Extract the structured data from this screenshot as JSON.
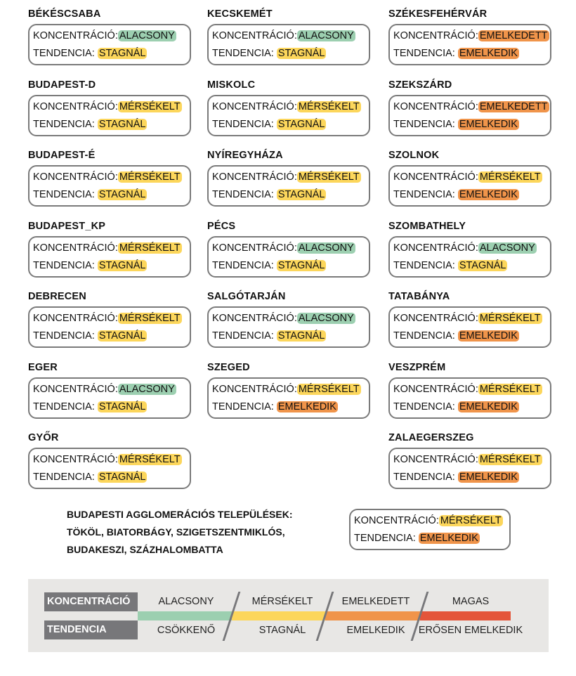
{
  "labels": {
    "concentration": "KONCENTRÁCIÓ:",
    "trend": "TENDENCIA:"
  },
  "colors": {
    "ALACSONY": "#9ccfb0",
    "MÉRSÉKELT": "#fcd65b",
    "EMELKEDETT": "#f0944a",
    "STAGNÁL": "#fcd65b",
    "EMELKEDIK": "#f0944a",
    "MAGAS": "#e4553a"
  },
  "columns": [
    [
      {
        "name": "BÉKÉSCSABA",
        "concentration": "ALACSONY",
        "trend": "STAGNÁL"
      },
      {
        "name": "BUDAPEST-D",
        "concentration": "MÉRSÉKELT",
        "trend": "STAGNÁL"
      },
      {
        "name": "BUDAPEST-É",
        "concentration": "MÉRSÉKELT",
        "trend": "STAGNÁL"
      },
      {
        "name": "BUDAPEST_KP",
        "concentration": "MÉRSÉKELT",
        "trend": "STAGNÁL"
      },
      {
        "name": "DEBRECEN",
        "concentration": "MÉRSÉKELT",
        "trend": "STAGNÁL"
      },
      {
        "name": "EGER",
        "concentration": "ALACSONY",
        "trend": "STAGNÁL"
      },
      {
        "name": "GYŐR",
        "concentration": "MÉRSÉKELT",
        "trend": "STAGNÁL"
      }
    ],
    [
      {
        "name": "KECSKEMÉT",
        "concentration": "ALACSONY",
        "trend": "STAGNÁL"
      },
      {
        "name": "MISKOLC",
        "concentration": "MÉRSÉKELT",
        "trend": "STAGNÁL"
      },
      {
        "name": "NYÍREGYHÁZA",
        "concentration": "MÉRSÉKELT",
        "trend": "STAGNÁL"
      },
      {
        "name": "PÉCS",
        "concentration": "ALACSONY",
        "trend": "STAGNÁL"
      },
      {
        "name": "SALGÓTARJÁN",
        "concentration": "ALACSONY",
        "trend": "STAGNÁL"
      },
      {
        "name": "SZEGED",
        "concentration": "MÉRSÉKELT",
        "trend": "EMELKEDIK"
      }
    ],
    [
      {
        "name": "SZÉKESFEHÉRVÁR",
        "concentration": "EMELKEDETT",
        "trend": "EMELKEDIK"
      },
      {
        "name": "SZEKSZÁRD",
        "concentration": "EMELKEDETT",
        "trend": "EMELKEDIK"
      },
      {
        "name": "SZOLNOK",
        "concentration": "MÉRSÉKELT",
        "trend": "EMELKEDIK"
      },
      {
        "name": "SZOMBATHELY",
        "concentration": "ALACSONY",
        "trend": "STAGNÁL"
      },
      {
        "name": "TATABÁNYA",
        "concentration": "MÉRSÉKELT",
        "trend": "EMELKEDIK"
      },
      {
        "name": "VESZPRÉM",
        "concentration": "MÉRSÉKELT",
        "trend": "EMELKEDIK"
      },
      {
        "name": "ZALAEGERSZEG",
        "concentration": "MÉRSÉKELT",
        "trend": "EMELKEDIK"
      }
    ]
  ],
  "agglomeration": {
    "lines": [
      "BUDAPESTI AGGLOMERÁCIÓS TELEPÜLÉSEK:",
      "TÖKÖL, BIATORBÁGY, SZIGETSZENTMIKLÓS,",
      "BUDAKESZI, SZÁZHALOMBATTA"
    ],
    "concentration": "MÉRSÉKELT",
    "trend": "EMELKEDIK"
  },
  "legend": {
    "concentration_label": "KONCENTRÁCIÓ",
    "trend_label": "TENDENCIA",
    "concentration_levels": [
      "ALACSONY",
      "MÉRSÉKELT",
      "EMELKEDETT",
      "MAGAS"
    ],
    "trend_levels": [
      "CSÖKKENŐ",
      "STAGNÁL",
      "EMELKEDIK",
      "ERŐSEN EMELKEDIK"
    ],
    "bar_colors": [
      "#9ccfb0",
      "#fcd65b",
      "#f0944a",
      "#e4553a"
    ]
  }
}
